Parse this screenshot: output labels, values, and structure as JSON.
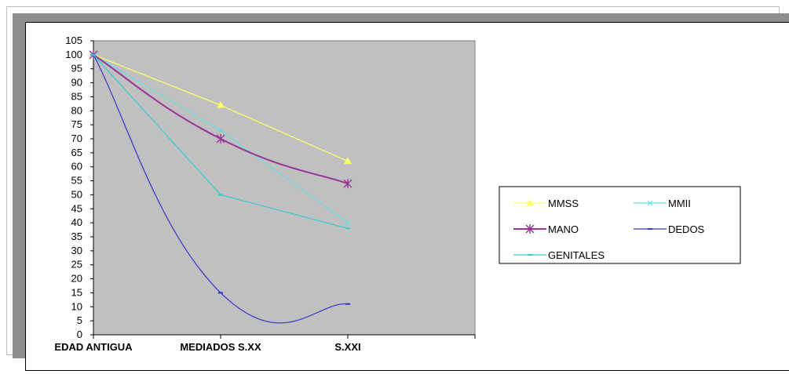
{
  "chart_data": {
    "type": "line",
    "categories": [
      "EDAD ANTIGUA",
      "MEDIADOS S.XX",
      "S.XXI"
    ],
    "ylim": [
      0,
      105
    ],
    "yticks": [
      0,
      5,
      10,
      15,
      20,
      25,
      30,
      35,
      40,
      45,
      50,
      55,
      60,
      65,
      70,
      75,
      80,
      85,
      90,
      95,
      100,
      105
    ],
    "plot_background": "#c0c0c0",
    "legend_position": "right",
    "series": [
      {
        "name": "MMSS",
        "values": [
          100,
          82,
          62
        ],
        "color": "#ffff66",
        "marker": "triangle",
        "smooth": false
      },
      {
        "name": "MMII",
        "values": [
          100,
          73,
          40
        ],
        "color": "#66dddd",
        "marker": "x",
        "smooth": false
      },
      {
        "name": "MANO",
        "values": [
          100,
          70,
          54
        ],
        "color": "#993399",
        "marker": "asterisk",
        "smooth": true
      },
      {
        "name": "DEDOS",
        "values": [
          100,
          15,
          11
        ],
        "color": "#3333cc",
        "marker": "dash",
        "smooth": true
      },
      {
        "name": "GENITALES",
        "values": [
          100,
          50,
          38
        ],
        "color": "#33cccc",
        "marker": "dash",
        "smooth": false
      }
    ]
  }
}
